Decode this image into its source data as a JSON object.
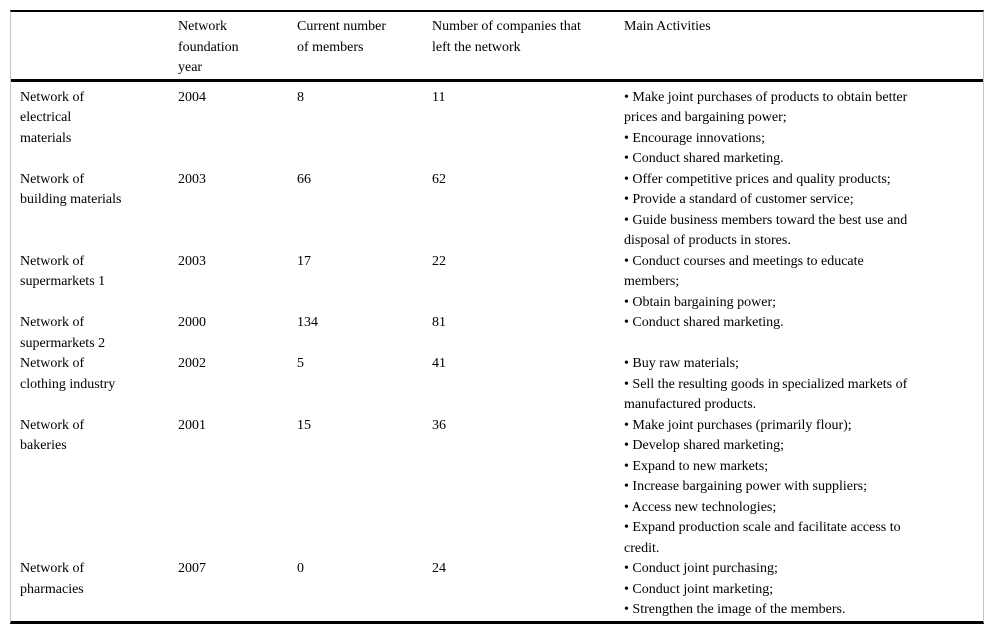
{
  "colors": {
    "text": "#000000",
    "rule": "#000000",
    "frame_side": "#c4c4c4",
    "background": "#ffffff"
  },
  "table": {
    "columns": [
      {
        "label": ""
      },
      {
        "label": "Network\nfoundation\nyear"
      },
      {
        "label": "Current number\nof members"
      },
      {
        "label": "Number of companies that\nleft the network"
      },
      {
        "label": "Main Activities"
      }
    ],
    "rows": [
      {
        "name": "Network of\nelectrical\nmaterials",
        "foundation_year": "2004",
        "current_members": "8",
        "companies_left": "11",
        "activities": [
          "• Make joint purchases of products to obtain better\nprices and bargaining power;",
          "• Encourage innovations;",
          "• Conduct shared marketing."
        ]
      },
      {
        "name": "Network of\nbuilding materials",
        "foundation_year": "2003",
        "current_members": "66",
        "companies_left": "62",
        "activities": [
          "• Offer competitive prices and quality products;",
          "• Provide a standard of customer service;",
          "• Guide business members toward the best use and\ndisposal of products in stores."
        ]
      },
      {
        "name": "Network of\nsupermarkets 1",
        "foundation_year": "2003",
        "current_members": "17",
        "companies_left": "22",
        "activities": [
          "• Conduct courses and meetings to educate\nmembers;",
          "• Obtain bargaining power;"
        ]
      },
      {
        "name": "Network of\nsupermarkets 2",
        "foundation_year": "2000",
        "current_members": "134",
        "companies_left": "81",
        "activities": [
          "• Conduct shared marketing."
        ]
      },
      {
        "name": "Network of\nclothing industry",
        "foundation_year": "2002",
        "current_members": "5",
        "companies_left": "41",
        "activities": [
          "• Buy raw materials;",
          "• Sell the resulting goods in specialized markets of\nmanufactured products."
        ]
      },
      {
        "name": "Network of\nbakeries",
        "foundation_year": "2001",
        "current_members": "15",
        "companies_left": "36",
        "activities": [
          "• Make joint purchases (primarily flour);",
          "• Develop shared marketing;",
          "• Expand to new markets;",
          "• Increase bargaining power with suppliers;",
          "• Access new technologies;",
          "• Expand production scale and facilitate access to\ncredit."
        ]
      },
      {
        "name": "Network of\npharmacies",
        "foundation_year": "2007",
        "current_members": "0",
        "companies_left": "24",
        "activities": [
          "• Conduct joint purchasing;",
          "• Conduct joint marketing;",
          "• Strengthen the image of the members."
        ]
      }
    ]
  }
}
